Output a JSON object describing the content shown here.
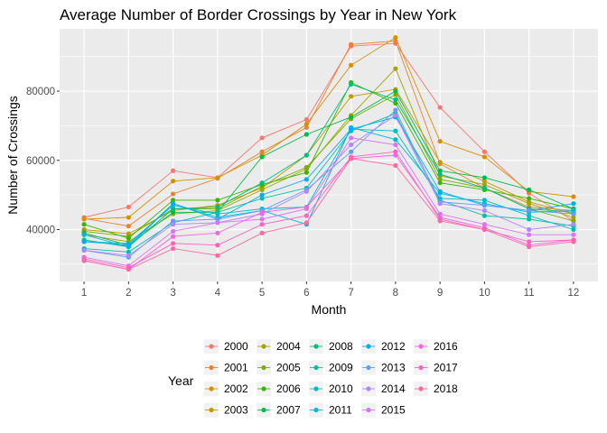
{
  "chart_data": {
    "type": "line",
    "title": "Average Number of Border Crossings by Year in New York",
    "xlabel": "Month",
    "ylabel": "Number of Crossings",
    "x": [
      1,
      2,
      3,
      4,
      5,
      6,
      7,
      8,
      9,
      10,
      11,
      12
    ],
    "x_ticks": [
      "1",
      "2",
      "3",
      "4",
      "5",
      "6",
      "7",
      "8",
      "9",
      "10",
      "11",
      "12"
    ],
    "y_ticks": [
      40000,
      60000,
      80000
    ],
    "y_tick_labels": [
      "40000",
      "60000",
      "80000"
    ],
    "xlim": [
      0.45,
      12.55
    ],
    "ylim": [
      25000,
      98000
    ],
    "grid": true,
    "legend": {
      "title": "Year",
      "position": "bottom"
    },
    "series": [
      {
        "name": "2000",
        "color": "#F8766D",
        "values": [
          43500,
          46500,
          57000,
          55000,
          66500,
          71800,
          93000,
          93800,
          75300,
          62500,
          50500,
          42500
        ]
      },
      {
        "name": "2001",
        "color": "#EA8331",
        "values": [
          43200,
          41000,
          50300,
          54800,
          62500,
          69500,
          93500,
          94500,
          59000,
          52000,
          46500,
          45500
        ]
      },
      {
        "name": "2002",
        "color": "#D89000",
        "values": [
          43000,
          43500,
          54000,
          55000,
          61500,
          70500,
          87500,
          95500,
          65500,
          61000,
          51000,
          49500
        ]
      },
      {
        "name": "2003",
        "color": "#C09B00",
        "values": [
          40000,
          38800,
          45500,
          47000,
          52000,
          61500,
          78500,
          80500,
          59500,
          54000,
          48000,
          44500
        ]
      },
      {
        "name": "2004",
        "color": "#A3A500",
        "values": [
          38500,
          36500,
          44500,
          45500,
          51500,
          57500,
          73000,
          86500,
          55500,
          53000,
          47500,
          43500
        ]
      },
      {
        "name": "2005",
        "color": "#7CAE00",
        "values": [
          39500,
          38000,
          46000,
          46000,
          52500,
          58000,
          72000,
          79000,
          54500,
          52000,
          46000,
          42500
        ]
      },
      {
        "name": "2006",
        "color": "#39B600",
        "values": [
          41500,
          37500,
          48500,
          48500,
          53000,
          56500,
          82500,
          76500,
          53500,
          51500,
          49000,
          46000
        ]
      },
      {
        "name": "2007",
        "color": "#00BB4E",
        "values": [
          39000,
          35500,
          45000,
          45000,
          61000,
          67500,
          72500,
          80000,
          57000,
          55000,
          51500,
          46000
        ]
      },
      {
        "name": "2008",
        "color": "#00BF7D",
        "values": [
          37000,
          35000,
          46000,
          46500,
          53500,
          61500,
          82000,
          77500,
          56000,
          52000,
          46000,
          45000
        ]
      },
      {
        "name": "2009",
        "color": "#00C1A3",
        "values": [
          34500,
          33500,
          42000,
          45000,
          49000,
          52000,
          68500,
          73500,
          48500,
          44000,
          43000,
          41000
        ]
      },
      {
        "name": "2010",
        "color": "#00BFC4",
        "values": [
          36500,
          36000,
          47000,
          44500,
          46000,
          46500,
          69000,
          68500,
          49000,
          48500,
          44000,
          40000
        ]
      },
      {
        "name": "2011",
        "color": "#00B9E3",
        "values": [
          38500,
          35000,
          47500,
          43500,
          45500,
          41500,
          69500,
          66000,
          50500,
          47500,
          45000,
          45500
        ]
      },
      {
        "name": "2012",
        "color": "#00ADFA",
        "values": [
          36500,
          35500,
          47500,
          43000,
          50000,
          54500,
          69000,
          72500,
          51000,
          47000,
          45500,
          47500
        ]
      },
      {
        "name": "2013",
        "color": "#619CFF",
        "values": [
          34000,
          32000,
          42500,
          43000,
          45500,
          51500,
          62500,
          74500,
          48000,
          47000,
          45500,
          44500
        ]
      },
      {
        "name": "2014",
        "color": "#AE87FF",
        "values": [
          34000,
          32500,
          41500,
          42000,
          44500,
          51000,
          64500,
          73000,
          47500,
          45500,
          40000,
          41500
        ]
      },
      {
        "name": "2015",
        "color": "#DB72FB",
        "values": [
          32000,
          29500,
          39500,
          42000,
          43000,
          46000,
          66500,
          64500,
          44500,
          41500,
          38500,
          38500
        ]
      },
      {
        "name": "2016",
        "color": "#F564E3",
        "values": [
          31000,
          28500,
          38000,
          39000,
          45000,
          46500,
          60500,
          61500,
          43500,
          40500,
          35500,
          37000
        ]
      },
      {
        "name": "2017",
        "color": "#FF61C3",
        "values": [
          31500,
          29000,
          36000,
          35500,
          41500,
          44000,
          61000,
          62500,
          43000,
          40000,
          36500,
          37000
        ]
      },
      {
        "name": "2018",
        "color": "#FF67A4",
        "values": [
          31000,
          28500,
          34500,
          32500,
          39000,
          42000,
          60500,
          58500,
          42500,
          40000,
          35000,
          36500
        ]
      }
    ]
  }
}
